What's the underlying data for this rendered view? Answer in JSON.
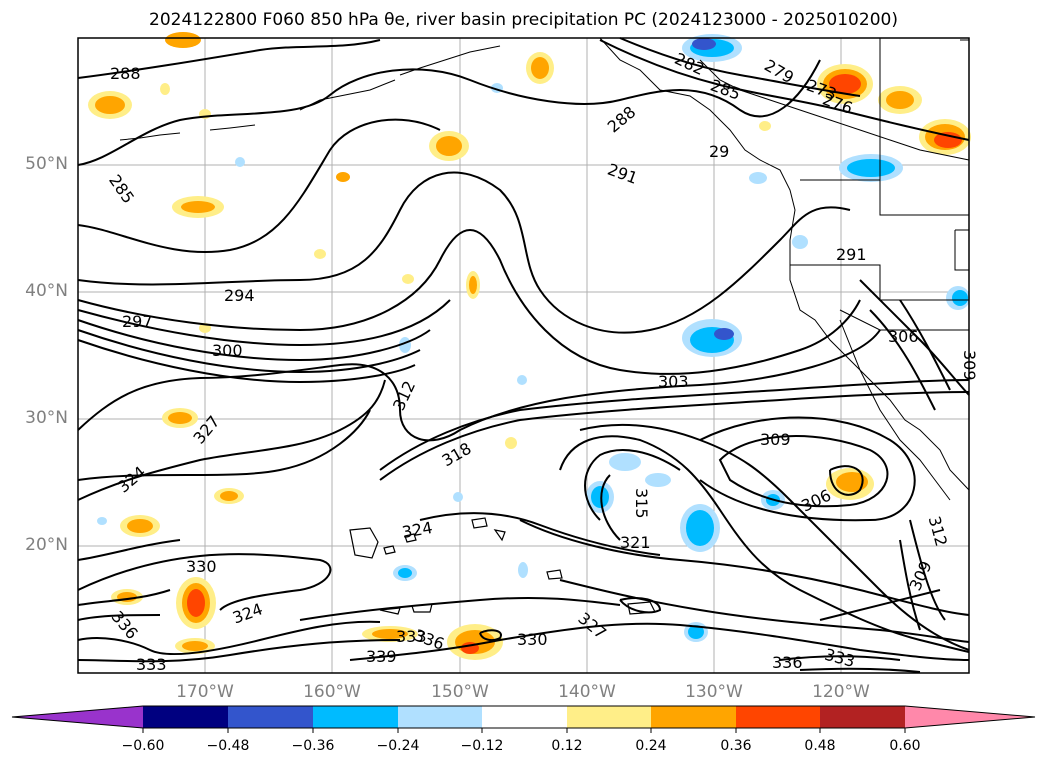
{
  "title": "2024122800 F060 850 hPa θe, river basin precipitation PC (2024123000 - 2025010200)",
  "map": {
    "lat_labels": [
      "50°N",
      "40°N",
      "30°N",
      "20°N"
    ],
    "lon_labels": [
      "170°W",
      "160°W",
      "150°W",
      "140°W",
      "130°W",
      "120°W"
    ],
    "contour_labels": [
      "288",
      "285",
      "288",
      "285",
      "279",
      "273",
      "276",
      "282",
      "291",
      "29",
      "291",
      "294",
      "297",
      "300",
      "303",
      "306",
      "309",
      "312",
      "318",
      "327",
      "324",
      "309",
      "306",
      "315",
      "321",
      "324",
      "330",
      "324",
      "336",
      "333",
      "339",
      "336",
      "333",
      "330",
      "327",
      "336",
      "333",
      "312",
      "309"
    ]
  },
  "colorbar": {
    "ticks": [
      "−0.60",
      "−0.48",
      "−0.36",
      "−0.24",
      "−0.12",
      "0.12",
      "0.24",
      "0.36",
      "0.48",
      "0.60"
    ],
    "colors": [
      "#9933cc",
      "#000080",
      "#3355cc",
      "#00bbff",
      "#b0e0ff",
      "#ffffff",
      "#ffee88",
      "#ffa500",
      "#ff4500",
      "#b22222",
      "#ff88aa"
    ]
  }
}
